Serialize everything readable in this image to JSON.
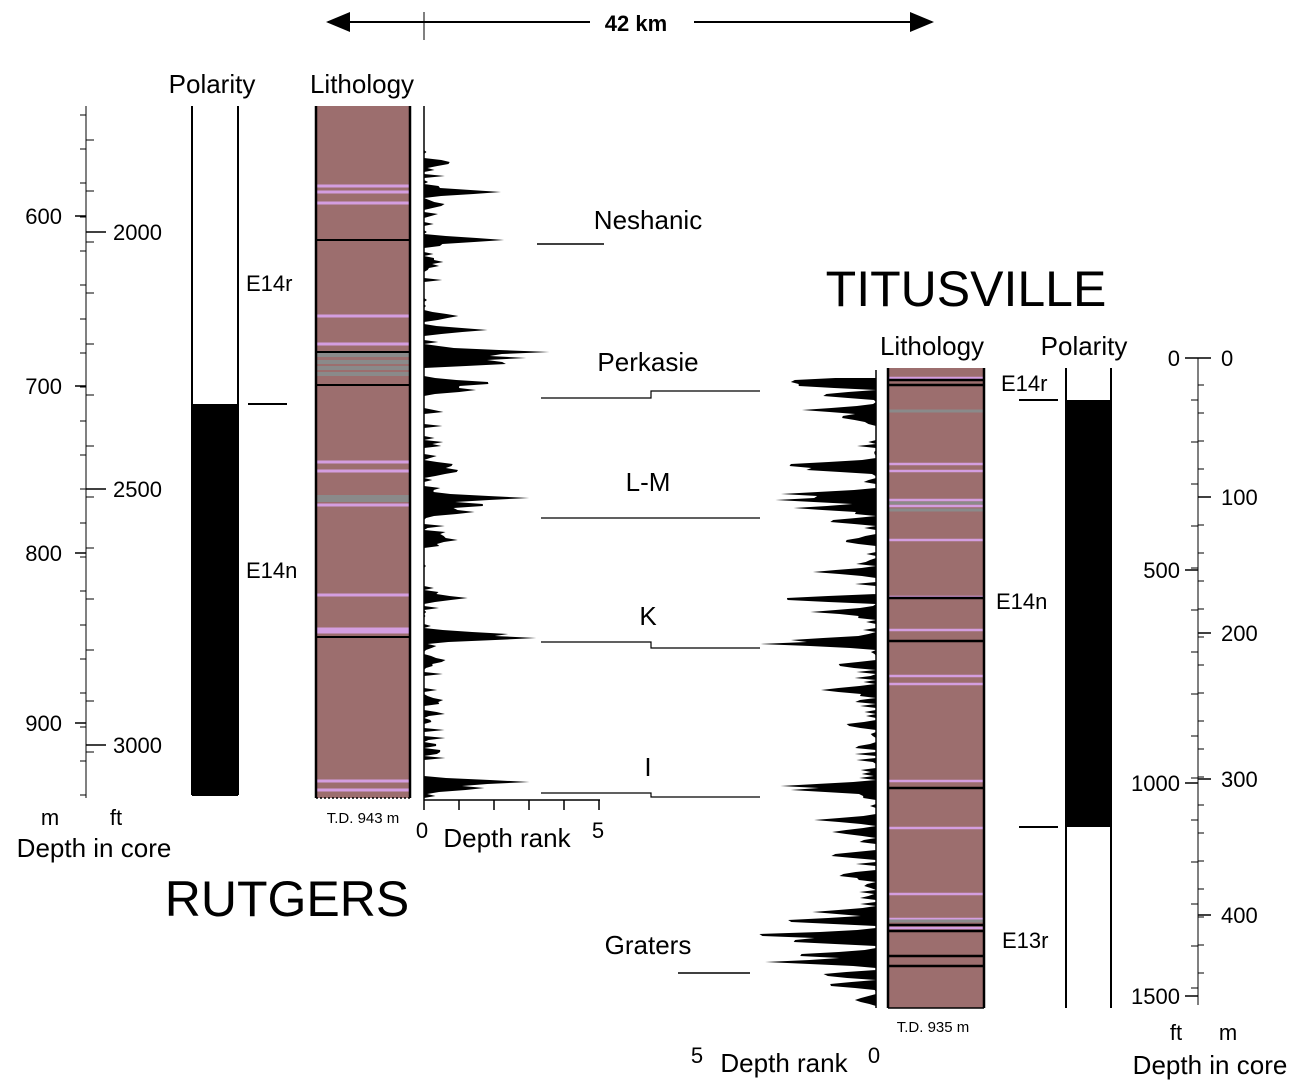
{
  "scale_bar": {
    "label": "42 km"
  },
  "rutgers": {
    "name": "RUTGERS",
    "polarity_header": "Polarity",
    "lithology_header": "Lithology",
    "depth_caption": "Depth in core",
    "unit_m": "m",
    "unit_ft": "ft",
    "td_label": "T.D. 943 m",
    "m_ticks": [
      "600",
      "700",
      "800",
      "900"
    ],
    "ft_ticks": [
      "2000",
      "2500",
      "3000"
    ],
    "chrons": [
      "E14r",
      "E14n"
    ],
    "rank_axis": {
      "min_label": "0",
      "max_label": "5",
      "title": "Depth rank"
    }
  },
  "titusville": {
    "name": "TITUSVILLE",
    "lithology_header": "Lithology",
    "polarity_header": "Polarity",
    "depth_caption": "Depth in core",
    "unit_ft": "ft",
    "unit_m": "m",
    "td_label": "T.D. 935 m",
    "ft_ticks": [
      "0",
      "500",
      "1000",
      "1500"
    ],
    "m_ticks": [
      "0",
      "100",
      "200",
      "300",
      "400"
    ],
    "chrons": [
      "E14r",
      "E14n",
      "E13r"
    ],
    "rank_axis": {
      "min_label": "0",
      "max_label": "5",
      "title": "Depth rank"
    }
  },
  "correlations": [
    "Neshanic",
    "Perkasie",
    "L-M",
    "K",
    "I",
    "Graters"
  ],
  "colors": {
    "lithology_fill": "#9c6e6e",
    "pink_band": "#d49ee0",
    "grey_band": "#8a8a8a",
    "normal_polarity": "#000000",
    "reversed_polarity": "#ffffff"
  }
}
